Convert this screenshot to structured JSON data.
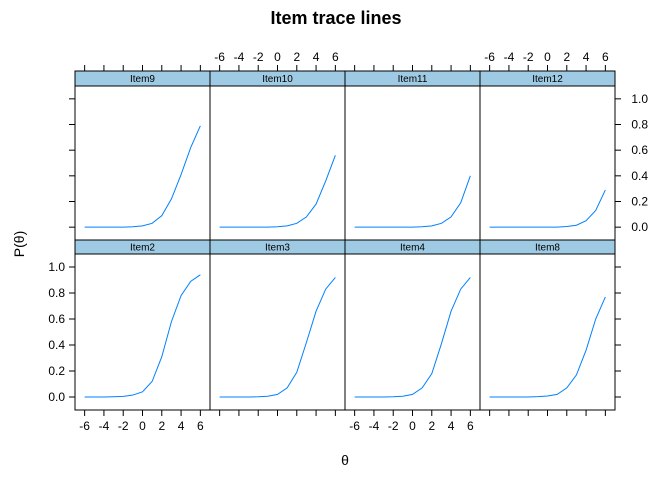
{
  "chart_data": {
    "type": "line",
    "title": "Item trace lines",
    "xlabel": "θ",
    "ylabel": "P(θ)",
    "xlim": [
      -7,
      7
    ],
    "ylim": [
      -0.1,
      1.1
    ],
    "x_ticks": [
      -6,
      -4,
      -2,
      0,
      2,
      4,
      6
    ],
    "y_ticks": [
      0.0,
      0.2,
      0.4,
      0.6,
      0.8,
      1.0
    ],
    "y_tick_labels": [
      "0.0",
      "0.2",
      "0.4",
      "0.6",
      "0.8",
      "1.0"
    ],
    "line_color": "#0080ff",
    "strip_color": "#9fcae4",
    "layout": {
      "columns": 4,
      "rows": 2
    },
    "x": [
      -6,
      -5,
      -4,
      -3,
      -2,
      -1,
      0,
      1,
      2,
      3,
      4,
      5,
      6
    ],
    "panels": [
      {
        "name": "Item9",
        "values": [
          0.0,
          0.0,
          0.0,
          0.0,
          0.0,
          0.003,
          0.01,
          0.03,
          0.09,
          0.22,
          0.41,
          0.62,
          0.79
        ]
      },
      {
        "name": "Item10",
        "values": [
          0.0,
          0.0,
          0.0,
          0.0,
          0.0,
          0.0,
          0.003,
          0.01,
          0.03,
          0.08,
          0.18,
          0.36,
          0.56
        ]
      },
      {
        "name": "Item11",
        "values": [
          0.0,
          0.0,
          0.0,
          0.0,
          0.0,
          0.0,
          0.0,
          0.003,
          0.01,
          0.03,
          0.08,
          0.19,
          0.4
        ]
      },
      {
        "name": "Item12",
        "values": [
          0.0,
          0.0,
          0.0,
          0.0,
          0.0,
          0.0,
          0.0,
          0.0,
          0.005,
          0.015,
          0.05,
          0.13,
          0.29
        ]
      },
      {
        "name": "Item2",
        "values": [
          0.0,
          0.0,
          0.0,
          0.002,
          0.005,
          0.015,
          0.04,
          0.12,
          0.31,
          0.58,
          0.78,
          0.89,
          0.94
        ]
      },
      {
        "name": "Item3",
        "values": [
          0.0,
          0.0,
          0.0,
          0.0,
          0.002,
          0.006,
          0.02,
          0.07,
          0.19,
          0.42,
          0.66,
          0.83,
          0.92
        ]
      },
      {
        "name": "Item4",
        "values": [
          0.0,
          0.0,
          0.0,
          0.0,
          0.002,
          0.006,
          0.02,
          0.07,
          0.18,
          0.41,
          0.66,
          0.83,
          0.92
        ]
      },
      {
        "name": "Item8",
        "values": [
          0.0,
          0.0,
          0.0,
          0.0,
          0.0,
          0.003,
          0.008,
          0.02,
          0.07,
          0.17,
          0.36,
          0.6,
          0.77
        ]
      }
    ]
  }
}
